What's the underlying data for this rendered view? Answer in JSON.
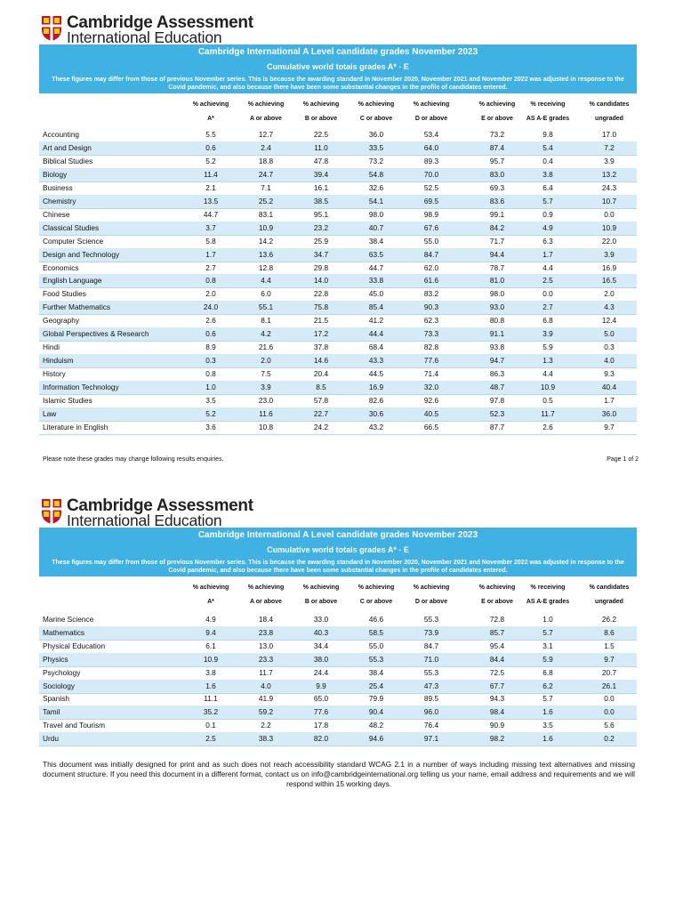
{
  "pages": [
    {
      "logo": [
        "Cambridge Assessment",
        "International Education"
      ],
      "title": "Cambridge International A Level candidate grades November 2023",
      "subtitle": "Cumulative world totals grades A* - E",
      "note": "These figures may differ from those of previous November series. This is because the awarding standard in November 2020, November 2021 and November 2022 was adjusted in response to the Covid pandemic, and also because there have been some substantial changes in the profile of candidates entered.",
      "headers": [
        [
          "% achieving",
          "A*"
        ],
        [
          "% achieving",
          "A or above"
        ],
        [
          "% achieving",
          "B or above"
        ],
        [
          "% achieving",
          "C or above"
        ],
        [
          "% achieving",
          "D or above"
        ],
        [
          "% achieving",
          "E or above"
        ],
        [
          "% receiving",
          "AS A-E grades"
        ],
        [
          "% candidates",
          "ungraded"
        ]
      ],
      "rows": [
        [
          "Accounting",
          "5.5",
          "12.7",
          "22.5",
          "36.0",
          "53.4",
          "73.2",
          "9.8",
          "17.0"
        ],
        [
          "Art and Design",
          "0.6",
          "2.4",
          "11.0",
          "33.5",
          "64.0",
          "87.4",
          "5.4",
          "7.2"
        ],
        [
          "Biblical Studies",
          "5.2",
          "18.8",
          "47.8",
          "73.2",
          "89.3",
          "95.7",
          "0.4",
          "3.9"
        ],
        [
          "Biology",
          "11.4",
          "24.7",
          "39.4",
          "54.8",
          "70.0",
          "83.0",
          "3.8",
          "13.2"
        ],
        [
          "Business",
          "2.1",
          "7.1",
          "16.1",
          "32.6",
          "52.5",
          "69.3",
          "6.4",
          "24.3"
        ],
        [
          "Chemistry",
          "13.5",
          "25.2",
          "38.5",
          "54.1",
          "69.5",
          "83.6",
          "5.7",
          "10.7"
        ],
        [
          "Chinese",
          "44.7",
          "83.1",
          "95.1",
          "98.0",
          "98.9",
          "99.1",
          "0.9",
          "0.0"
        ],
        [
          "Classical Studies",
          "3.7",
          "10.9",
          "23.2",
          "40.7",
          "67.6",
          "84.2",
          "4.9",
          "10.9"
        ],
        [
          "Computer Science",
          "5.8",
          "14.2",
          "25.9",
          "38.4",
          "55.0",
          "71.7",
          "6.3",
          "22.0"
        ],
        [
          "Design and Technology",
          "1.7",
          "13.6",
          "34.7",
          "63.5",
          "84.7",
          "94.4",
          "1.7",
          "3.9"
        ],
        [
          "Economics",
          "2.7",
          "12.8",
          "29.8",
          "44.7",
          "62.0",
          "78.7",
          "4.4",
          "16.9"
        ],
        [
          "English Language",
          "0.8",
          "4.4",
          "14.0",
          "33.8",
          "61.6",
          "81.0",
          "2.5",
          "16.5"
        ],
        [
          "Food Studies",
          "2.0",
          "6.0",
          "22.8",
          "45.0",
          "83.2",
          "98.0",
          "0.0",
          "2.0"
        ],
        [
          "Further Mathematics",
          "24.0",
          "55.1",
          "75.8",
          "85.4",
          "90.3",
          "93.0",
          "2.7",
          "4.3"
        ],
        [
          "Geography",
          "2.6",
          "8.1",
          "21.5",
          "41.2",
          "62.3",
          "80.8",
          "6.8",
          "12.4"
        ],
        [
          "Global Perspectives & Research",
          "0.6",
          "4.2",
          "17.2",
          "44.4",
          "73.3",
          "91.1",
          "3.9",
          "5.0"
        ],
        [
          "Hindi",
          "8.9",
          "21.6",
          "37.8",
          "68.4",
          "82.8",
          "93.8",
          "5.9",
          "0.3"
        ],
        [
          "Hinduism",
          "0.3",
          "2.0",
          "14.6",
          "43.3",
          "77.6",
          "94.7",
          "1.3",
          "4.0"
        ],
        [
          "History",
          "0.8",
          "7.5",
          "20.4",
          "44.5",
          "71.4",
          "86.3",
          "4.4",
          "9.3"
        ],
        [
          "Information Technology",
          "1.0",
          "3.9",
          "8.5",
          "16.9",
          "32.0",
          "48.7",
          "10.9",
          "40.4"
        ],
        [
          "Islamic Studies",
          "3.5",
          "23.0",
          "57.8",
          "82.6",
          "92.6",
          "97.8",
          "0.5",
          "1.7"
        ],
        [
          "Law",
          "5.2",
          "11.6",
          "22.7",
          "30.6",
          "40.5",
          "52.3",
          "11.7",
          "36.0"
        ],
        [
          "Literature in English",
          "3.6",
          "10.8",
          "24.2",
          "43.2",
          "66.5",
          "87.7",
          "2.6",
          "9.7"
        ]
      ],
      "footer_left": "Please note these grades may change following results enquiries.",
      "footer_right": "Page 1 of 2"
    },
    {
      "logo": [
        "Cambridge Assessment",
        "International Education"
      ],
      "title": "Cambridge International A Level candidate grades November 2023",
      "subtitle": "Cumulative world totals grades A* - E",
      "note": "These figures may differ from those of previous November series. This is because the awarding standard in November 2020, November 2021 and November 2022 was adjusted in response to the Covid pandemic, and also because there have been some substantial changes in the profile of candidates entered.",
      "headers": [
        [
          "% achieving",
          "A*"
        ],
        [
          "% achieving",
          "A or above"
        ],
        [
          "% achieving",
          "B or above"
        ],
        [
          "% achieving",
          "C or above"
        ],
        [
          "% achieving",
          "D or above"
        ],
        [
          "% achieving",
          "E or above"
        ],
        [
          "% receiving",
          "AS A-E grades"
        ],
        [
          "% candidates",
          "ungraded"
        ]
      ],
      "rows": [
        [
          "Marine Science",
          "4.9",
          "18.4",
          "33.0",
          "46.6",
          "55.3",
          "72.8",
          "1.0",
          "26.2"
        ],
        [
          "Mathematics",
          "9.4",
          "23.8",
          "40.3",
          "58.5",
          "73.9",
          "85.7",
          "5.7",
          "8.6"
        ],
        [
          "Physical Education",
          "6.1",
          "13.0",
          "34.4",
          "55.0",
          "84.7",
          "95.4",
          "3.1",
          "1.5"
        ],
        [
          "Physics",
          "10.9",
          "23.3",
          "38.0",
          "55.3",
          "71.0",
          "84.4",
          "5.9",
          "9.7"
        ],
        [
          "Psychology",
          "3.8",
          "11.7",
          "24.4",
          "38.4",
          "55.3",
          "72.5",
          "6.8",
          "20.7"
        ],
        [
          "Sociology",
          "1.6",
          "4.0",
          "9.9",
          "25.4",
          "47.3",
          "67.7",
          "6.2",
          "26.1"
        ],
        [
          "Spanish",
          "11.1",
          "41.9",
          "65.0",
          "79.9",
          "89.5",
          "94.3",
          "5.7",
          "0.0"
        ],
        [
          "Tamil",
          "35.2",
          "59.2",
          "77.6",
          "90.4",
          "96.0",
          "98.4",
          "1.6",
          "0.0"
        ],
        [
          "Travel and Tourism",
          "0.1",
          "2.2",
          "17.8",
          "48.2",
          "76.4",
          "90.9",
          "3.5",
          "5.6"
        ],
        [
          "Urdu",
          "2.5",
          "38.3",
          "82.0",
          "94.6",
          "97.1",
          "98.2",
          "1.6",
          "0.2"
        ]
      ],
      "footer_text": "This document was initially designed for print and as such does not reach accessibility standard WCAG 2.1 in a number of ways including missing text alternatives and missing document structure. If you need this document in a different format, contact us on info@cambridgeinternational.org telling us your name, email address and requirements and we will respond within 15 working days."
    }
  ]
}
